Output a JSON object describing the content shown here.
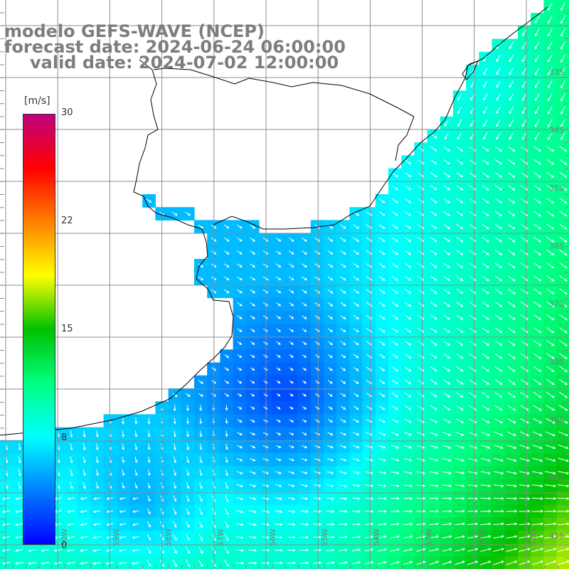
{
  "title": {
    "line1": "modelo GEFS-WAVE (NCEP)",
    "line2": "forecast date: 2024-06-24 06:00:00",
    "line3": "valid date: 2024-07-02 12:00:00"
  },
  "colorbar": {
    "unit": "[m/s]",
    "max": "30",
    "ticks": [
      "22",
      "15",
      "8"
    ],
    "min": "0",
    "stops": [
      "#0000ff",
      "#0080ff",
      "#00ffff",
      "#00ff80",
      "#00c000",
      "#ffff00",
      "#ff8000",
      "#ff0000",
      "#c00080"
    ]
  },
  "lat_labels": [
    "33S",
    "34S",
    "35S",
    "36S",
    "37S",
    "38S",
    "39S",
    "40S",
    "41S"
  ],
  "lon_labels": [
    "60W",
    "59W",
    "58W",
    "57W",
    "56W",
    "55W",
    "54W",
    "53W",
    "52W",
    "51W"
  ],
  "colors": {
    "land": "#ffffff",
    "grid": "#8c8c8c",
    "coast": "#000000",
    "vector": "#ffffff",
    "label": "#7d7d7d"
  }
}
